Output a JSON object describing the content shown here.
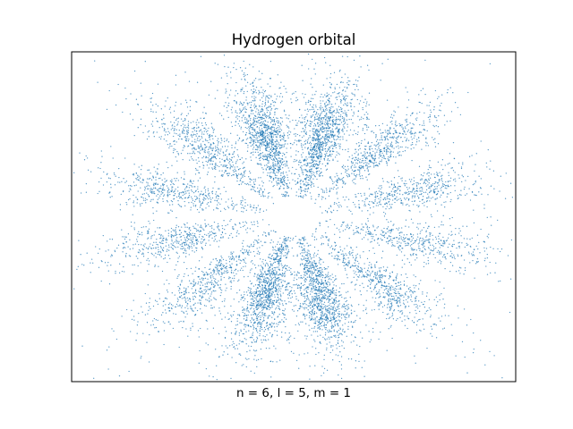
{
  "chart_data": {
    "type": "scatter",
    "title": "Hydrogen orbital",
    "xlabel": "n = 6, l = 5, m = 1",
    "ylabel": "",
    "xticks": [],
    "yticks": [],
    "grid": false,
    "legend": "none",
    "quantum_numbers": {
      "n": 6,
      "l": 5,
      "m": 1
    },
    "xlim": [
      -1,
      1
    ],
    "ylim": [
      -1,
      1
    ],
    "series": [
      {
        "color": "#1f77b4",
        "point_count": 9000,
        "lobes": [
          {
            "angle_deg": 75,
            "weight": 1.0
          },
          {
            "angle_deg": 105,
            "weight": 1.0
          },
          {
            "angle_deg": 45,
            "weight": 0.55
          },
          {
            "angle_deg": 135,
            "weight": 0.55
          },
          {
            "angle_deg": 15,
            "weight": 0.45
          },
          {
            "angle_deg": 165,
            "weight": 0.45
          },
          {
            "angle_deg": -15,
            "weight": 0.45
          },
          {
            "angle_deg": -165,
            "weight": 0.45
          },
          {
            "angle_deg": -45,
            "weight": 0.55
          },
          {
            "angle_deg": -135,
            "weight": 0.55
          },
          {
            "angle_deg": -75,
            "weight": 1.0
          },
          {
            "angle_deg": -105,
            "weight": 1.0
          }
        ]
      }
    ]
  }
}
